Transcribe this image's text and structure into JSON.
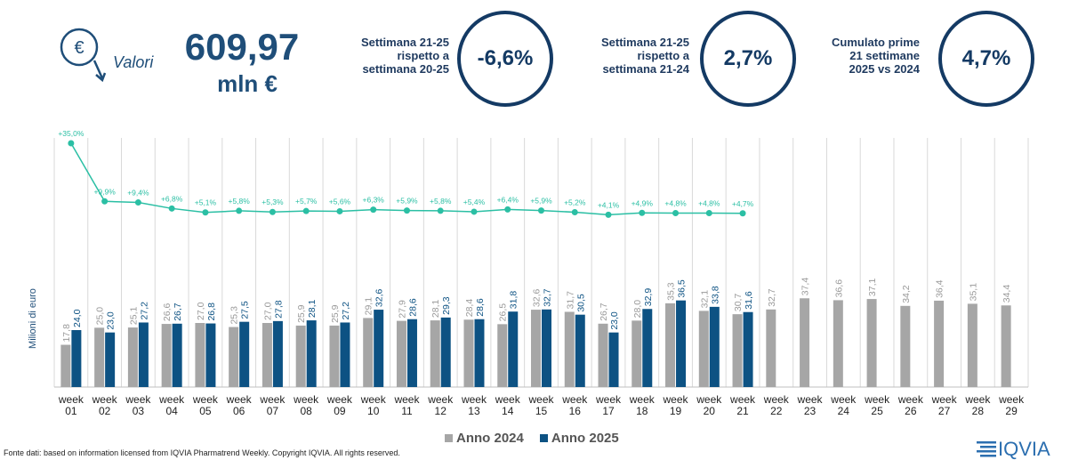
{
  "header": {
    "icon_symbol": "€",
    "label": "Valori",
    "total": "609,97",
    "unit": "mln €"
  },
  "kpis": [
    {
      "text": [
        "Settimana 21-25",
        "rispetto a",
        "settimana 20-25"
      ],
      "value": "-6,6%"
    },
    {
      "text": [
        "Settimana 21-25",
        "rispetto a",
        "settimana 21-24"
      ],
      "value": "2,7%"
    },
    {
      "text": [
        "Cumulato prime",
        "21 settimane",
        "2025 vs 2024"
      ],
      "value": "4,7%"
    }
  ],
  "chart_data": {
    "type": "bar",
    "y_label": "Milioni di euro",
    "categories": [
      "week 01",
      "week 02",
      "week 03",
      "week 04",
      "week 05",
      "week 06",
      "week 07",
      "week 08",
      "week 09",
      "week 10",
      "week 11",
      "week 12",
      "week 13",
      "week 14",
      "week 15",
      "week 16",
      "week 17",
      "week 18",
      "week 19",
      "week 20",
      "week 21",
      "week 22",
      "week 23",
      "week 24",
      "week 25",
      "week 26",
      "week 27",
      "week 28",
      "week 29"
    ],
    "ylim": [
      0,
      60
    ],
    "y2lim": [
      0,
      40
    ],
    "series": [
      {
        "name": "Anno 2024",
        "color": "#a6a6a6",
        "values": [
          17.8,
          25.0,
          25.1,
          26.6,
          27.0,
          25.3,
          27.0,
          25.9,
          25.9,
          29.1,
          27.9,
          28.1,
          28.4,
          26.5,
          32.6,
          31.7,
          26.7,
          28.0,
          35.3,
          32.1,
          30.7,
          32.7,
          37.4,
          36.6,
          37.1,
          34.2,
          36.4,
          35.1,
          34.4
        ],
        "value_labels": [
          "17,8",
          "25,0",
          "25,1",
          "26,6",
          "27,0",
          "25,3",
          "27,0",
          "25,9",
          "25,9",
          "29,1",
          "27,9",
          "28,1",
          "28,4",
          "26,5",
          "32,6",
          "31,7",
          "26,7",
          "28,0",
          "35,3",
          "32,1",
          "30,7",
          "32,7",
          "37,4",
          "36,6",
          "37,1",
          "34,2",
          "36,4",
          "35,1",
          "34,4"
        ]
      },
      {
        "name": "Anno 2025",
        "color": "#0d5283",
        "values": [
          24.0,
          23.0,
          27.2,
          26.7,
          26.8,
          27.5,
          27.8,
          28.1,
          27.2,
          32.6,
          28.6,
          29.3,
          28.6,
          31.8,
          32.7,
          30.5,
          23.0,
          32.9,
          36.5,
          33.8,
          31.6,
          null,
          null,
          null,
          null,
          null,
          null,
          null,
          null
        ],
        "value_labels": [
          "24,0",
          "23,0",
          "27,2",
          "26,7",
          "26,8",
          "27,5",
          "27,8",
          "28,1",
          "27,2",
          "32,6",
          "28,6",
          "29,3",
          "28,6",
          "31,8",
          "32,7",
          "30,5",
          "23,0",
          "32,9",
          "36,5",
          "33,8",
          "31,6",
          null,
          null,
          null,
          null,
          null,
          null,
          null,
          null
        ]
      }
    ],
    "growth": {
      "color": "#2bbfa4",
      "axis": "y2",
      "values": [
        35.0,
        9.9,
        9.4,
        6.8,
        5.1,
        5.8,
        5.3,
        5.7,
        5.6,
        6.3,
        5.9,
        5.8,
        5.4,
        6.4,
        5.9,
        5.2,
        4.1,
        4.9,
        4.8,
        4.8,
        4.7,
        null,
        null,
        null,
        null,
        null,
        null,
        null,
        null
      ],
      "value_labels": [
        "+35,0%",
        "+9,9%",
        "+9,4%",
        "+6,8%",
        "+5,1%",
        "+5,8%",
        "+5,3%",
        "+5,7%",
        "+5,6%",
        "+6,3%",
        "+5,9%",
        "+5,8%",
        "+5,4%",
        "+6,4%",
        "+5,9%",
        "+5,2%",
        "+4,1%",
        "+4,9%",
        "+4,8%",
        "+4,8%",
        "+4,7%",
        null,
        null,
        null,
        null,
        null,
        null,
        null,
        null
      ]
    }
  },
  "footer": {
    "source": "Fonte dati: based on information licensed from IQVIA Pharmatrend Weekly. Copyright IQVIA. All rights reserved.",
    "logo": "IQVIA"
  }
}
